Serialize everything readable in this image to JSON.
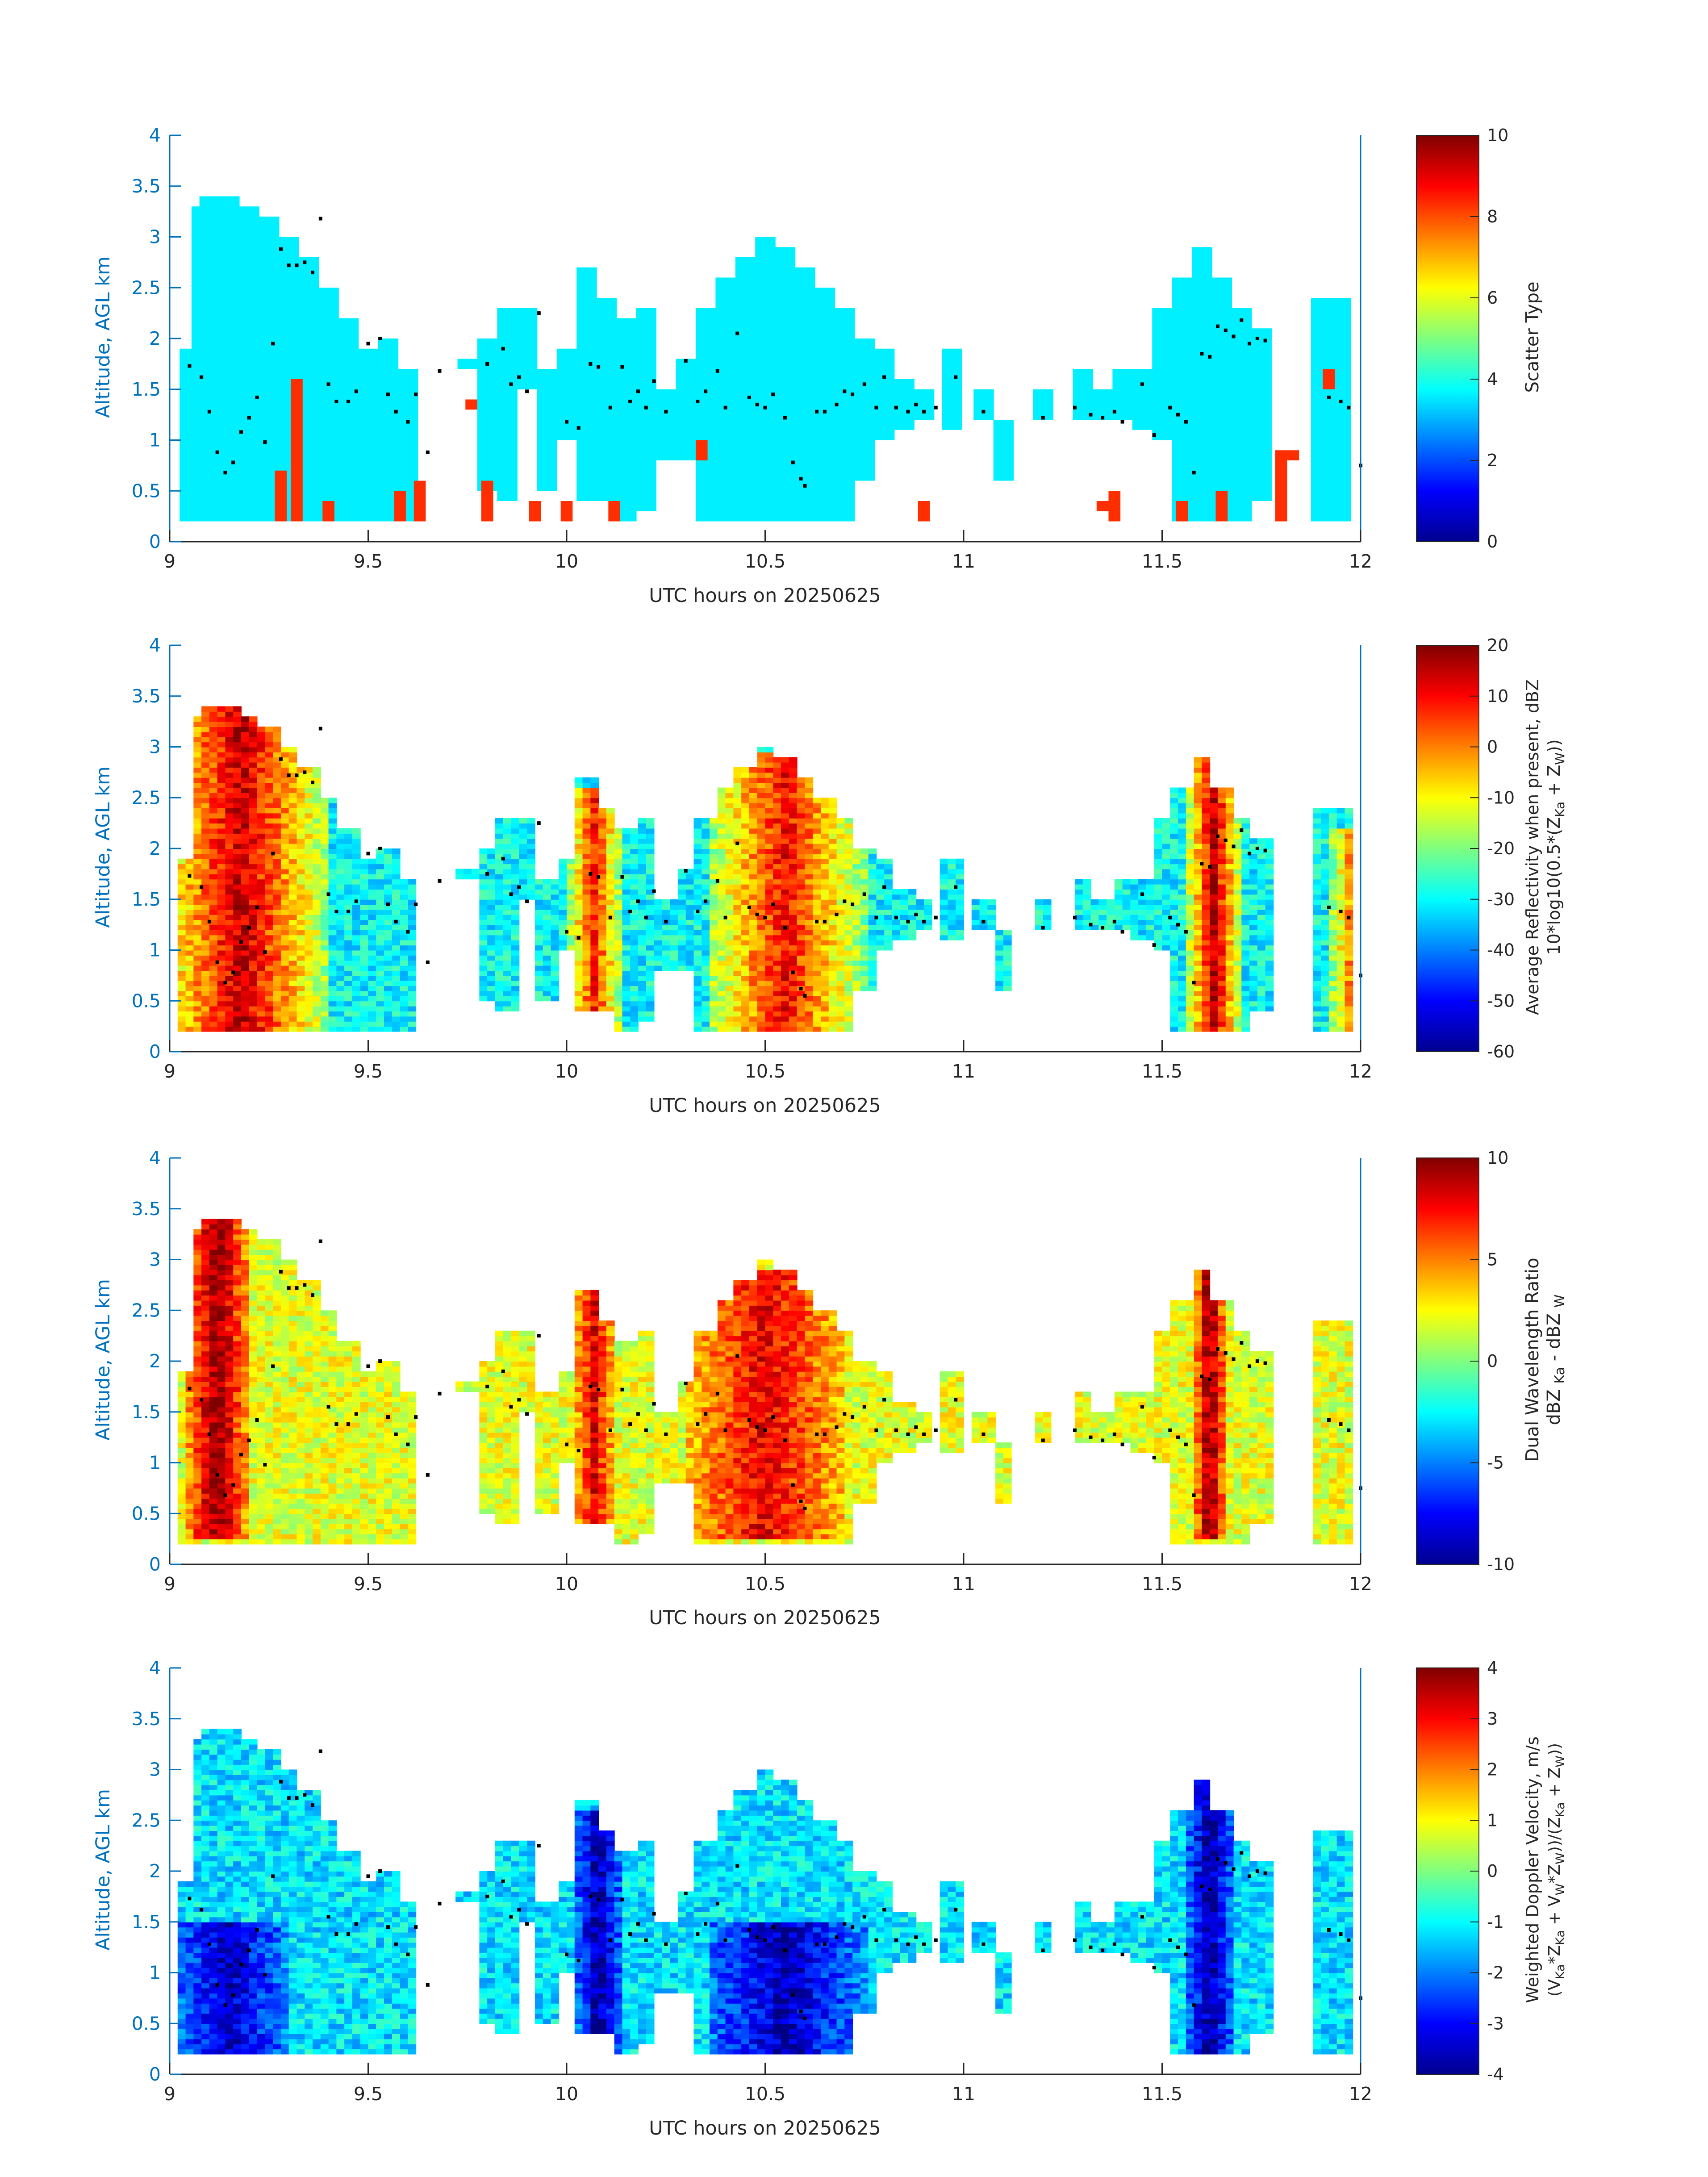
{
  "common": {
    "xlabel": "UTC hours on 20250625",
    "ylabel": "Altitude, AGL km",
    "xticks": [
      "9",
      "9.5",
      "10",
      "10.5",
      "11",
      "11.5",
      "12"
    ],
    "yticks": [
      "0",
      "0.5",
      "1",
      "1.5",
      "2",
      "2.5",
      "3",
      "3.5",
      "4"
    ],
    "xlim": [
      9,
      12
    ],
    "ylim": [
      0,
      4
    ],
    "axis_color": "#0072BD",
    "data_bottom_km": 0.2
  },
  "chart_data": [
    {
      "type": "heatmap",
      "field": "scatter_type",
      "colorbar": {
        "label": "Scatter Type",
        "ticks": [
          "0",
          "2",
          "4",
          "6",
          "8",
          "10"
        ],
        "range": [
          0,
          10
        ]
      },
      "xlabel": "UTC hours on 20250625",
      "ylabel": "Altitude, AGL km",
      "dominant_class_value": 3.6,
      "minor_class_value": 8.3,
      "cells": [
        [
          9.05,
          0.2,
          1.9
        ],
        [
          9.08,
          0.2,
          3.3
        ],
        [
          9.1,
          0.2,
          3.4
        ],
        [
          9.15,
          0.2,
          3.4
        ],
        [
          9.2,
          0.2,
          3.3
        ],
        [
          9.25,
          0.2,
          3.2
        ],
        [
          9.3,
          0.2,
          3.0
        ],
        [
          9.35,
          0.2,
          2.8
        ],
        [
          9.4,
          0.2,
          2.5
        ],
        [
          9.45,
          0.2,
          2.2
        ],
        [
          9.5,
          0.2,
          1.9
        ],
        [
          9.55,
          0.2,
          2.0
        ],
        [
          9.6,
          0.2,
          1.7
        ],
        [
          9.75,
          1.7,
          1.8
        ],
        [
          9.8,
          0.5,
          2.0
        ],
        [
          9.85,
          0.4,
          2.3
        ],
        [
          9.9,
          1.5,
          2.3
        ],
        [
          9.95,
          0.5,
          1.7
        ],
        [
          10.0,
          1.0,
          1.9
        ],
        [
          10.05,
          0.4,
          2.7
        ],
        [
          10.1,
          0.4,
          2.4
        ],
        [
          10.15,
          0.2,
          2.2
        ],
        [
          10.2,
          0.3,
          2.3
        ],
        [
          10.25,
          0.8,
          1.5
        ],
        [
          10.3,
          0.8,
          1.8
        ],
        [
          10.35,
          0.2,
          2.3
        ],
        [
          10.4,
          0.2,
          2.6
        ],
        [
          10.45,
          0.2,
          2.8
        ],
        [
          10.5,
          0.2,
          3.0
        ],
        [
          10.55,
          0.2,
          2.9
        ],
        [
          10.6,
          0.2,
          2.7
        ],
        [
          10.65,
          0.2,
          2.5
        ],
        [
          10.7,
          0.2,
          2.3
        ],
        [
          10.75,
          0.6,
          2.0
        ],
        [
          10.8,
          1.0,
          1.9
        ],
        [
          10.85,
          1.1,
          1.6
        ],
        [
          10.9,
          1.2,
          1.5
        ],
        [
          10.97,
          1.1,
          1.9
        ],
        [
          11.05,
          1.2,
          1.5
        ],
        [
          11.1,
          0.6,
          1.2
        ],
        [
          11.2,
          1.2,
          1.5
        ],
        [
          11.3,
          1.2,
          1.7
        ],
        [
          11.35,
          1.2,
          1.5
        ],
        [
          11.4,
          1.2,
          1.7
        ],
        [
          11.45,
          1.1,
          1.7
        ],
        [
          11.5,
          1.0,
          2.3
        ],
        [
          11.55,
          0.2,
          2.6
        ],
        [
          11.6,
          0.2,
          2.9
        ],
        [
          11.65,
          0.2,
          2.6
        ],
        [
          11.7,
          0.2,
          2.3
        ],
        [
          11.75,
          0.4,
          2.1
        ],
        [
          11.9,
          0.2,
          2.4
        ],
        [
          11.95,
          0.2,
          2.4
        ]
      ],
      "minor_cells": [
        [
          9.28,
          0.2,
          0.7
        ],
        [
          9.32,
          0.2,
          1.6
        ],
        [
          9.4,
          0.2,
          0.4
        ],
        [
          9.58,
          0.2,
          0.5
        ],
        [
          9.63,
          0.2,
          0.6
        ],
        [
          9.76,
          1.3,
          1.4
        ],
        [
          9.8,
          0.2,
          0.6
        ],
        [
          9.92,
          0.2,
          0.4
        ],
        [
          10.0,
          0.2,
          0.4
        ],
        [
          10.12,
          0.2,
          0.4
        ],
        [
          10.34,
          0.8,
          1.0
        ],
        [
          10.9,
          0.2,
          0.4
        ],
        [
          11.35,
          0.3,
          0.4
        ],
        [
          11.38,
          0.2,
          0.5
        ],
        [
          11.55,
          0.2,
          0.4
        ],
        [
          11.65,
          0.2,
          0.5
        ],
        [
          11.8,
          0.2,
          0.9
        ],
        [
          11.83,
          0.8,
          0.9
        ],
        [
          11.92,
          1.5,
          1.7
        ]
      ]
    },
    {
      "type": "heatmap",
      "field": "average_reflectivity",
      "colorbar": {
        "label": "Average Reflectivity when present, dBZ",
        "label2": "10*log10(0.5*(Z_Ka + Z_W))",
        "ticks": [
          "-60",
          "-50",
          "-40",
          "-30",
          "-20",
          "-10",
          "0",
          "10",
          "20"
        ],
        "range": [
          -60,
          20
        ]
      },
      "xlabel": "UTC hours on 20250625",
      "ylabel": "Altitude, AGL km",
      "cores": [
        {
          "x": 9.18,
          "w": 0.22,
          "bottom": 0.2,
          "top": 3.45,
          "peak": 15
        },
        {
          "x": 10.07,
          "w": 0.07,
          "bottom": 0.2,
          "top": 2.6,
          "peak": 8
        },
        {
          "x": 10.55,
          "w": 0.2,
          "bottom": 0.2,
          "top": 2.95,
          "peak": 10
        },
        {
          "x": 11.63,
          "w": 0.07,
          "bottom": 0.2,
          "top": 2.95,
          "peak": 15
        },
        {
          "x": 11.98,
          "w": 0.06,
          "bottom": 0.2,
          "top": 2.2,
          "peak": 2
        }
      ]
    },
    {
      "type": "heatmap",
      "field": "dual_wavelength_ratio",
      "colorbar": {
        "label": "Dual Wavelength Ratio",
        "label2": "dBZ Ka - dBZ W",
        "ticks": [
          "-10",
          "-5",
          "0",
          "5",
          "10"
        ],
        "range": [
          -10,
          10
        ]
      },
      "xlabel": "UTC hours on 20250625",
      "ylabel": "Altitude, AGL km",
      "cores": [
        {
          "x": 9.12,
          "w": 0.08,
          "bottom": 0.25,
          "top": 3.45,
          "peak": 10
        },
        {
          "x": 10.07,
          "w": 0.05,
          "bottom": 0.25,
          "top": 2.7,
          "peak": 8
        },
        {
          "x": 10.5,
          "w": 0.2,
          "bottom": 0.25,
          "top": 2.9,
          "peak": 8
        },
        {
          "x": 11.62,
          "w": 0.04,
          "bottom": 0.25,
          "top": 3.0,
          "peak": 10
        }
      ]
    },
    {
      "type": "heatmap",
      "field": "weighted_doppler_velocity",
      "colorbar": {
        "label": "Weighted Doppler Velocity, m/s",
        "label2": "(V_Ka*Z_Ka + V_W*Z_W)/(Z_Ka + Z_W)",
        "ticks": [
          "-4",
          "-3",
          "-2",
          "-1",
          "0",
          "1",
          "2",
          "3",
          "4"
        ],
        "range": [
          -4,
          4
        ]
      },
      "xlabel": "UTC hours on 20250625",
      "ylabel": "Altitude, AGL km",
      "cores": [
        {
          "x": 9.15,
          "w": 0.15,
          "bottom": 0.2,
          "top": 1.5,
          "peak": -3.5
        },
        {
          "x": 10.08,
          "w": 0.06,
          "bottom": 0.2,
          "top": 2.6,
          "peak": -3.8
        },
        {
          "x": 10.55,
          "w": 0.2,
          "bottom": 0.2,
          "top": 1.5,
          "peak": -3.6
        },
        {
          "x": 11.62,
          "w": 0.06,
          "bottom": 0.2,
          "top": 2.9,
          "peak": -3.8
        }
      ]
    }
  ],
  "overlay_points": [
    [
      9.05,
      1.73
    ],
    [
      9.08,
      1.62
    ],
    [
      9.1,
      1.28
    ],
    [
      9.12,
      0.88
    ],
    [
      9.14,
      0.68
    ],
    [
      9.16,
      0.78
    ],
    [
      9.18,
      1.08
    ],
    [
      9.2,
      1.22
    ],
    [
      9.22,
      1.42
    ],
    [
      9.24,
      0.98
    ],
    [
      9.26,
      1.95
    ],
    [
      9.28,
      2.88
    ],
    [
      9.3,
      2.72
    ],
    [
      9.32,
      2.72
    ],
    [
      9.34,
      2.75
    ],
    [
      9.36,
      2.65
    ],
    [
      9.38,
      3.18
    ],
    [
      9.4,
      1.55
    ],
    [
      9.42,
      1.38
    ],
    [
      9.45,
      1.38
    ],
    [
      9.47,
      1.48
    ],
    [
      9.5,
      1.95
    ],
    [
      9.53,
      2.0
    ],
    [
      9.55,
      1.45
    ],
    [
      9.57,
      1.28
    ],
    [
      9.6,
      1.18
    ],
    [
      9.62,
      1.45
    ],
    [
      9.65,
      0.88
    ],
    [
      9.68,
      1.68
    ],
    [
      9.8,
      1.75
    ],
    [
      9.84,
      1.9
    ],
    [
      9.86,
      1.55
    ],
    [
      9.88,
      1.62
    ],
    [
      9.9,
      1.48
    ],
    [
      9.93,
      2.25
    ],
    [
      10.0,
      1.18
    ],
    [
      10.03,
      1.12
    ],
    [
      10.06,
      1.75
    ],
    [
      10.08,
      1.72
    ],
    [
      10.11,
      1.32
    ],
    [
      10.14,
      1.72
    ],
    [
      10.16,
      1.38
    ],
    [
      10.18,
      1.48
    ],
    [
      10.2,
      1.32
    ],
    [
      10.22,
      1.58
    ],
    [
      10.25,
      1.28
    ],
    [
      10.3,
      1.78
    ],
    [
      10.33,
      1.38
    ],
    [
      10.35,
      1.48
    ],
    [
      10.38,
      1.68
    ],
    [
      10.4,
      1.32
    ],
    [
      10.43,
      2.05
    ],
    [
      10.46,
      1.42
    ],
    [
      10.48,
      1.35
    ],
    [
      10.5,
      1.32
    ],
    [
      10.52,
      1.45
    ],
    [
      10.55,
      1.22
    ],
    [
      10.57,
      0.78
    ],
    [
      10.59,
      0.62
    ],
    [
      10.6,
      0.55
    ],
    [
      10.63,
      1.28
    ],
    [
      10.65,
      1.28
    ],
    [
      10.68,
      1.35
    ],
    [
      10.7,
      1.48
    ],
    [
      10.72,
      1.45
    ],
    [
      10.75,
      1.55
    ],
    [
      10.78,
      1.32
    ],
    [
      10.8,
      1.62
    ],
    [
      10.83,
      1.32
    ],
    [
      10.86,
      1.28
    ],
    [
      10.88,
      1.35
    ],
    [
      10.9,
      1.28
    ],
    [
      10.93,
      1.32
    ],
    [
      10.98,
      1.62
    ],
    [
      11.05,
      1.28
    ],
    [
      11.2,
      1.22
    ],
    [
      11.28,
      1.32
    ],
    [
      11.32,
      1.25
    ],
    [
      11.35,
      1.22
    ],
    [
      11.38,
      1.28
    ],
    [
      11.4,
      1.18
    ],
    [
      11.45,
      1.55
    ],
    [
      11.48,
      1.05
    ],
    [
      11.52,
      1.32
    ],
    [
      11.54,
      1.25
    ],
    [
      11.56,
      1.18
    ],
    [
      11.58,
      0.68
    ],
    [
      11.6,
      1.85
    ],
    [
      11.62,
      1.82
    ],
    [
      11.64,
      2.12
    ],
    [
      11.66,
      2.08
    ],
    [
      11.68,
      2.02
    ],
    [
      11.7,
      2.18
    ],
    [
      11.72,
      1.95
    ],
    [
      11.74,
      2.0
    ],
    [
      11.76,
      1.98
    ],
    [
      11.92,
      1.42
    ],
    [
      11.95,
      1.38
    ],
    [
      11.97,
      1.32
    ],
    [
      12.0,
      0.75
    ]
  ]
}
